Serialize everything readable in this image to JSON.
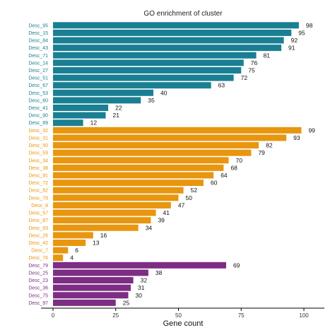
{
  "chart_data": {
    "type": "bar",
    "orientation": "horizontal",
    "title": "GO enrichment of cluster",
    "xlabel": "Gene count",
    "ylabel": "",
    "xlim": [
      0,
      107
    ],
    "xticks": [
      0,
      25,
      50,
      75,
      100
    ],
    "grid": false,
    "legend": "none",
    "categories": [
      "Desc_95",
      "Desc_15",
      "Desc_84",
      "Desc_43",
      "Desc_71",
      "Desc_14",
      "Desc_27",
      "Desc_51",
      "Desc_67",
      "Desc_53",
      "Desc_60",
      "Desc_41",
      "Desc_90",
      "Desc_89",
      "Desc_32",
      "Desc_31",
      "Desc_50",
      "Desc_59",
      "Desc_34",
      "Desc_38",
      "Desc_91",
      "Desc_72",
      "Desc_82",
      "Desc_78",
      "Desc_8",
      "Desc_57",
      "Desc_87",
      "Desc_93",
      "Desc_26",
      "Desc_42",
      "Desc_7",
      "Desc_76",
      "Desc_79",
      "Desc_25",
      "Desc_23",
      "Desc_36",
      "Desc_75",
      "Desc_97"
    ],
    "values": [
      98,
      95,
      92,
      91,
      81,
      76,
      75,
      72,
      63,
      40,
      35,
      22,
      21,
      12,
      99,
      93,
      82,
      79,
      70,
      68,
      64,
      60,
      52,
      50,
      47,
      41,
      39,
      34,
      16,
      13,
      6,
      4,
      69,
      38,
      32,
      31,
      30,
      25
    ],
    "groups": [
      0,
      0,
      0,
      0,
      0,
      0,
      0,
      0,
      0,
      0,
      0,
      0,
      0,
      0,
      1,
      1,
      1,
      1,
      1,
      1,
      1,
      1,
      1,
      1,
      1,
      1,
      1,
      1,
      1,
      1,
      1,
      1,
      2,
      2,
      2,
      2,
      2,
      2
    ],
    "group_colors": [
      "#1a7f93",
      "#e8960f",
      "#7d2d83"
    ]
  }
}
